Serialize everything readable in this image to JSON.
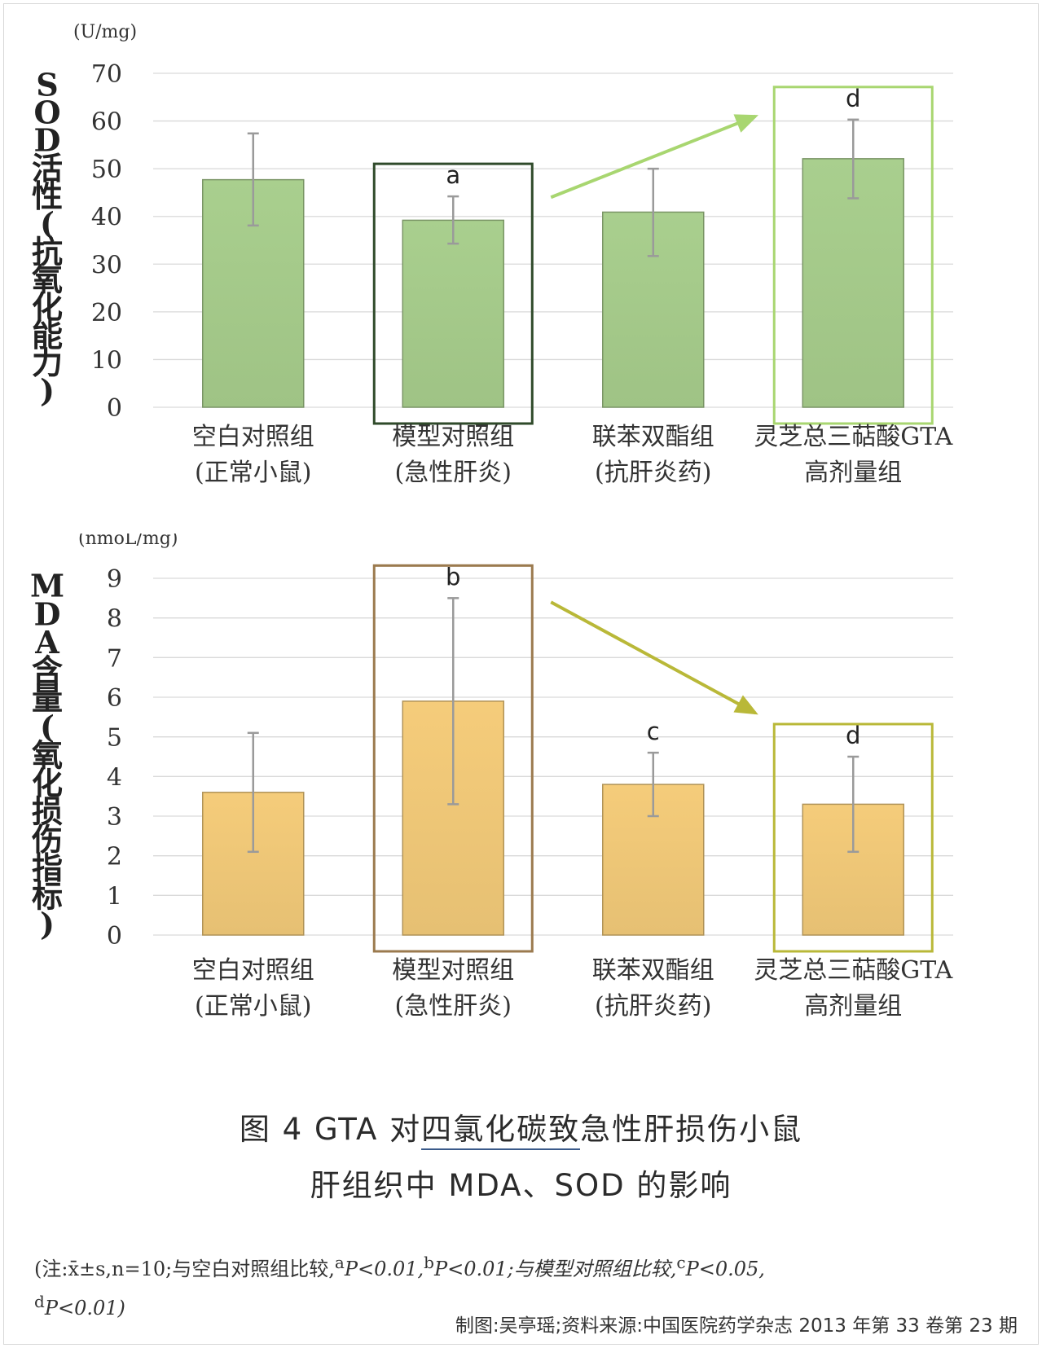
{
  "chart_data": [
    {
      "type": "bar",
      "unit": "(U/mg)",
      "ylabel": "SOD活性(抗氧化能力)",
      "ylim": [
        0,
        70
      ],
      "yticks": [
        0,
        10,
        20,
        30,
        40,
        50,
        60,
        70
      ],
      "categories": [
        {
          "line1": "空白对照组",
          "line2": "(正常小鼠)"
        },
        {
          "line1": "模型对照组",
          "line2": "(急性肝炎)"
        },
        {
          "line1": "联苯双酯组",
          "line2": "(抗肝炎药)"
        },
        {
          "line1": "灵芝总三萜酸GTA",
          "line2": "高剂量组"
        }
      ],
      "values": [
        47.7,
        39.2,
        40.9,
        52.1
      ],
      "error_low": [
        38.1,
        34.3,
        31.7,
        43.8
      ],
      "error_high": [
        57.4,
        44.2,
        50.0,
        60.3
      ],
      "labels": [
        "",
        "a",
        "",
        "d"
      ],
      "bar_color": "#a9cf8e",
      "highlight": [
        {
          "bar": 1,
          "color": "#2f4a2a"
        },
        {
          "bar": 3,
          "color": "#a8d670"
        }
      ],
      "arrow_color": "#a8d670",
      "grid": true
    },
    {
      "type": "bar",
      "unit": "(nmoL/mg)",
      "ylabel": "MDA含量(氧化损伤指标)",
      "ylim": [
        0,
        9
      ],
      "yticks": [
        0,
        1,
        2,
        3,
        4,
        5,
        6,
        7,
        8,
        9
      ],
      "categories": [
        {
          "line1": "空白对照组",
          "line2": "(正常小鼠)"
        },
        {
          "line1": "模型对照组",
          "line2": "(急性肝炎)"
        },
        {
          "line1": "联苯双酯组",
          "line2": "(抗肝炎药)"
        },
        {
          "line1": "灵芝总三萜酸GTA",
          "line2": "高剂量组"
        }
      ],
      "values": [
        3.6,
        5.9,
        3.8,
        3.3
      ],
      "error_low": [
        2.1,
        3.3,
        3.0,
        2.1
      ],
      "error_high": [
        5.1,
        8.5,
        4.6,
        4.5
      ],
      "labels": [
        "",
        "b",
        "c",
        "d"
      ],
      "bar_color": "#f5cc7a",
      "highlight": [
        {
          "bar": 1,
          "color": "#9b7a4e"
        },
        {
          "bar": 3,
          "color": "#b9b838"
        }
      ],
      "arrow_color": "#b9b838",
      "grid": true
    }
  ],
  "caption": {
    "line1_prefix": "图 4  GTA 对",
    "line1_underlined": "四氯化碳致",
    "line1_suffix": "急性肝损伤小鼠",
    "line2": "肝组织中 MDA、SOD 的影响"
  },
  "note": {
    "part1": "(注:",
    "part2": "x̄±s,n=10;与空白对照组比较,",
    "sup_a": "a",
    "pa": "P<0.01,",
    "sup_b": "b",
    "pb": "P<0.01;与模型对照组比较,",
    "sup_c": "c",
    "pc": "P<0.05,",
    "sup_d": "d",
    "pd": "P<0.01)"
  },
  "credit": "制图:吴亭瑶;资料来源:中国医院药学杂志 2013 年第 33 卷第 23 期"
}
